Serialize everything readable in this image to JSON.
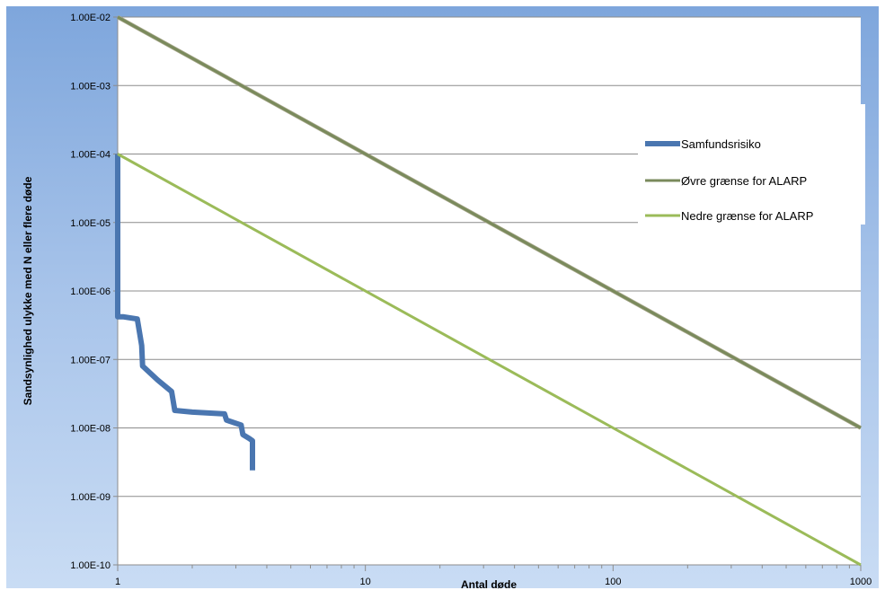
{
  "chart_data": {
    "type": "line",
    "title": "",
    "xlabel": "Antal døde",
    "ylabel": "Sandsynlighed ulykke med N eller flere døde",
    "x_scale": "log",
    "y_scale": "log",
    "xlim": [
      1,
      1000
    ],
    "ylim": [
      1e-10,
      0.01
    ],
    "x_ticks": [
      {
        "value": 1,
        "label": "1"
      },
      {
        "value": 10,
        "label": "10"
      },
      {
        "value": 100,
        "label": "100"
      },
      {
        "value": 1000,
        "label": "1000"
      }
    ],
    "y_ticks": [
      {
        "value": 1e-10,
        "label": "1.00E-10"
      },
      {
        "value": 1e-09,
        "label": "1.00E-09"
      },
      {
        "value": 1e-08,
        "label": "1.00E-08"
      },
      {
        "value": 1e-07,
        "label": "1.00E-07"
      },
      {
        "value": 1e-06,
        "label": "1.00E-06"
      },
      {
        "value": 1e-05,
        "label": "1.00E-05"
      },
      {
        "value": 0.0001,
        "label": "1.00E-04"
      },
      {
        "value": 0.001,
        "label": "1.00E-03"
      },
      {
        "value": 0.01,
        "label": "1.00E-02"
      }
    ],
    "grid": "horizontal major",
    "legend_position": "right",
    "series": [
      {
        "name": "Samfundsrisiko",
        "color": "#4a76b0",
        "points": [
          [
            1.0,
            0.0001
          ],
          [
            1.0,
            4.2e-07
          ],
          [
            1.05,
            4.2e-07
          ],
          [
            1.2,
            3.9e-07
          ],
          [
            1.25,
            1.6e-07
          ],
          [
            1.26,
            8e-08
          ],
          [
            1.45,
            5e-08
          ],
          [
            1.65,
            3.4e-08
          ],
          [
            1.7,
            1.8e-08
          ],
          [
            2.0,
            1.7e-08
          ],
          [
            2.7,
            1.6e-08
          ],
          [
            2.75,
            1.3e-08
          ],
          [
            3.15,
            1.1e-08
          ],
          [
            3.2,
            8e-09
          ],
          [
            3.4,
            7e-09
          ],
          [
            3.5,
            6.5e-09
          ],
          [
            3.5,
            2.4e-09
          ]
        ]
      },
      {
        "name": "Øvre grænse for ALARP",
        "color": "#7a8a5c",
        "points": [
          [
            1,
            0.01
          ],
          [
            1000,
            1e-08
          ]
        ]
      },
      {
        "name": "Nedre grænse for ALARP",
        "color": "#9bbb59",
        "points": [
          [
            1,
            0.0001
          ],
          [
            1000,
            1e-10
          ]
        ]
      }
    ]
  }
}
